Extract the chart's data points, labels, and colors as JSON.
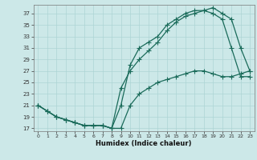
{
  "title": "",
  "xlabel": "Humidex (Indice chaleur)",
  "bg_color": "#cce8e8",
  "grid_color": "#add4d4",
  "line_color": "#1a6b5a",
  "xlim": [
    -0.5,
    23.5
  ],
  "ylim": [
    16.5,
    38.5
  ],
  "yticks": [
    17,
    19,
    21,
    23,
    25,
    27,
    29,
    31,
    33,
    35,
    37
  ],
  "xticks": [
    0,
    1,
    2,
    3,
    4,
    5,
    6,
    7,
    8,
    9,
    10,
    11,
    12,
    13,
    14,
    15,
    16,
    17,
    18,
    19,
    20,
    21,
    22,
    23
  ],
  "series1_x": [
    0,
    1,
    2,
    3,
    4,
    5,
    6,
    7,
    8,
    9,
    10,
    11,
    12,
    13,
    14,
    15,
    16,
    17,
    18,
    19,
    20,
    21,
    22,
    23
  ],
  "series1_y": [
    21,
    20,
    19,
    18.5,
    18,
    17.5,
    17.5,
    17.5,
    17,
    17,
    21,
    23,
    24,
    25,
    25.5,
    26,
    26.5,
    27,
    27,
    26.5,
    26,
    26,
    26.5,
    27
  ],
  "series2_x": [
    0,
    1,
    2,
    3,
    4,
    5,
    6,
    7,
    8,
    9,
    10,
    11,
    12,
    13,
    14,
    15,
    16,
    17,
    18,
    19,
    20,
    21,
    22,
    23
  ],
  "series2_y": [
    21,
    20,
    19,
    18.5,
    18,
    17.5,
    17.5,
    17.5,
    17,
    21,
    28,
    31,
    32,
    33,
    35,
    36,
    37,
    37.5,
    37.5,
    37,
    36,
    31,
    26,
    26
  ],
  "series3_x": [
    0,
    1,
    2,
    3,
    4,
    5,
    6,
    7,
    8,
    9,
    10,
    11,
    12,
    13,
    14,
    15,
    16,
    17,
    18,
    19,
    20,
    21,
    22,
    23
  ],
  "series3_y": [
    21,
    20,
    19,
    18.5,
    18,
    17.5,
    17.5,
    17.5,
    17,
    24,
    27,
    29,
    30.5,
    32,
    34,
    35.5,
    36.5,
    37,
    37.5,
    38,
    37,
    36,
    31,
    27
  ]
}
